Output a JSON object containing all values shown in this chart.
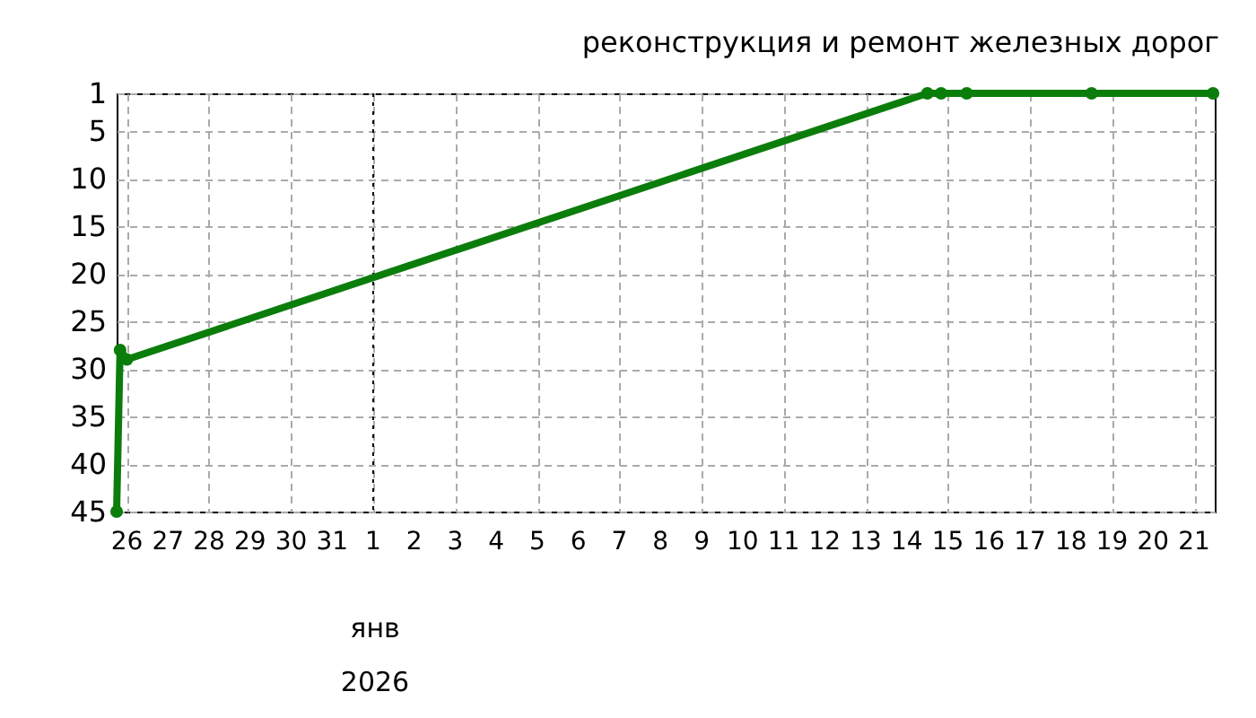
{
  "chart_data": {
    "type": "line",
    "title": "реконструкция и ремонт железных дорог",
    "x": [
      "2025-12-25T18:00",
      "2025-12-25T20:00",
      "2025-12-26T00:00",
      "2026-01-14T12:00",
      "2026-01-14T20:00",
      "2026-01-15T11:00",
      "2026-01-18T12:00",
      "2026-01-21T11:00"
    ],
    "series": [
      {
        "color": "#0b7d0b",
        "values": [
          45,
          28,
          29,
          1,
          1,
          1,
          1,
          1
        ]
      }
    ],
    "xlim": [
      "2025-12-25T18:00",
      "2026-01-21T12:00"
    ],
    "xticks": [
      {
        "value": "2025-12-26",
        "label": "26"
      },
      {
        "value": "2025-12-27",
        "label": "27"
      },
      {
        "value": "2025-12-28",
        "label": "28"
      },
      {
        "value": "2025-12-29",
        "label": "29"
      },
      {
        "value": "2025-12-30",
        "label": "30"
      },
      {
        "value": "2025-12-31",
        "label": "31"
      },
      {
        "value": "2026-01-01",
        "label": "1"
      },
      {
        "value": "2026-01-02",
        "label": "2"
      },
      {
        "value": "2026-01-03",
        "label": "3"
      },
      {
        "value": "2026-01-04",
        "label": "4"
      },
      {
        "value": "2026-01-05",
        "label": "5"
      },
      {
        "value": "2026-01-06",
        "label": "6"
      },
      {
        "value": "2026-01-07",
        "label": "7"
      },
      {
        "value": "2026-01-08",
        "label": "8"
      },
      {
        "value": "2026-01-09",
        "label": "9"
      },
      {
        "value": "2026-01-10",
        "label": "10"
      },
      {
        "value": "2026-01-11",
        "label": "11"
      },
      {
        "value": "2026-01-12",
        "label": "12"
      },
      {
        "value": "2026-01-13",
        "label": "13"
      },
      {
        "value": "2026-01-14",
        "label": "14"
      },
      {
        "value": "2026-01-15",
        "label": "15"
      },
      {
        "value": "2026-01-16",
        "label": "16"
      },
      {
        "value": "2026-01-17",
        "label": "17"
      },
      {
        "value": "2026-01-18",
        "label": "18"
      },
      {
        "value": "2026-01-19",
        "label": "19"
      },
      {
        "value": "2026-01-20",
        "label": "20"
      },
      {
        "value": "2026-01-21",
        "label": "21"
      }
    ],
    "ylim": [
      45,
      1
    ],
    "yticks": [
      1,
      5,
      10,
      15,
      20,
      25,
      30,
      35,
      40,
      45
    ],
    "ref_lines": [
      {
        "axis": "x",
        "value": "2026-01-01",
        "color": "#000000",
        "line_style": "dotted"
      }
    ],
    "annotations": [
      "янв",
      "2026"
    ],
    "grid": true,
    "marker": "circle",
    "line_style": "solid"
  }
}
